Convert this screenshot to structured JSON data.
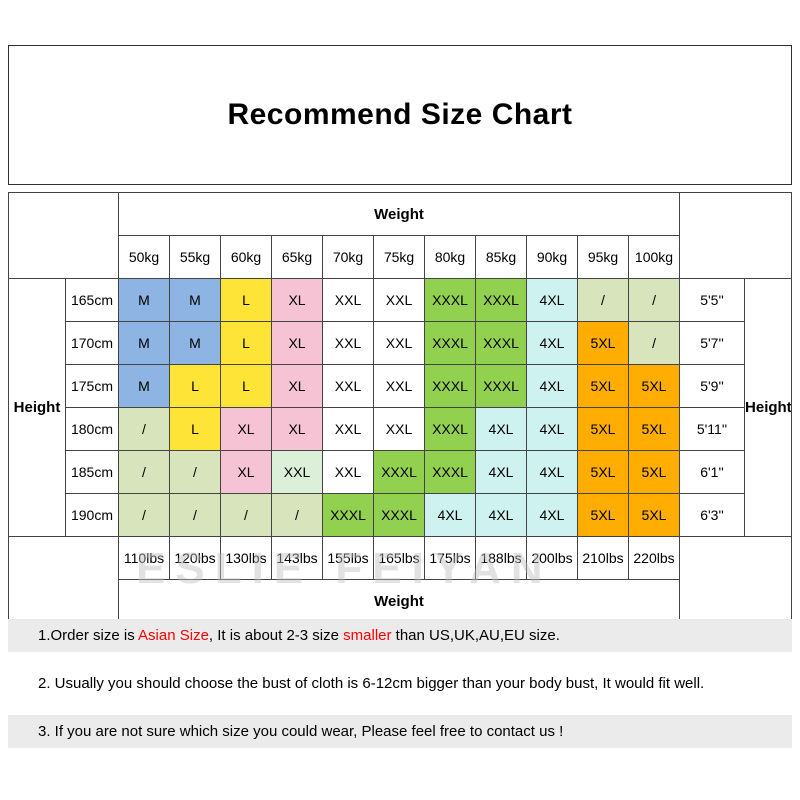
{
  "chart_data": {
    "type": "table",
    "title": "Recommend Size Chart",
    "weight_top": "Weight",
    "weight_bottom": "Weight",
    "height_left": "Height",
    "height_right": "Height",
    "kg": [
      "50kg",
      "55kg",
      "60kg",
      "65kg",
      "70kg",
      "75kg",
      "80kg",
      "85kg",
      "90kg",
      "95kg",
      "100kg"
    ],
    "lbs": [
      "110lbs",
      "120lbs",
      "130lbs",
      "143lbs",
      "155lbs",
      "165lbs",
      "175lbs",
      "188lbs",
      "200lbs",
      "210lbs",
      "220lbs"
    ],
    "rows": [
      {
        "cm": "165cm",
        "ft": "5'5''",
        "cells": [
          {
            "t": "M",
            "c": "blue"
          },
          {
            "t": "M",
            "c": "blue"
          },
          {
            "t": "L",
            "c": "yellow"
          },
          {
            "t": "XL",
            "c": "pink"
          },
          {
            "t": "XXL",
            "c": "white"
          },
          {
            "t": "XXL",
            "c": "white"
          },
          {
            "t": "XXXL",
            "c": "green"
          },
          {
            "t": "XXXL",
            "c": "green"
          },
          {
            "t": "4XL",
            "c": "cyan"
          },
          {
            "t": "/",
            "c": "pale"
          },
          {
            "t": "/",
            "c": "pale"
          }
        ]
      },
      {
        "cm": "170cm",
        "ft": "5'7''",
        "cells": [
          {
            "t": "M",
            "c": "blue"
          },
          {
            "t": "M",
            "c": "blue"
          },
          {
            "t": "L",
            "c": "yellow"
          },
          {
            "t": "XL",
            "c": "pink"
          },
          {
            "t": "XXL",
            "c": "white"
          },
          {
            "t": "XXL",
            "c": "white"
          },
          {
            "t": "XXXL",
            "c": "green"
          },
          {
            "t": "XXXL",
            "c": "green"
          },
          {
            "t": "4XL",
            "c": "cyan"
          },
          {
            "t": "5XL",
            "c": "orange"
          },
          {
            "t": "/",
            "c": "pale"
          }
        ]
      },
      {
        "cm": "175cm",
        "ft": "5'9''",
        "cells": [
          {
            "t": "M",
            "c": "blue"
          },
          {
            "t": "L",
            "c": "yellow"
          },
          {
            "t": "L",
            "c": "yellow"
          },
          {
            "t": "XL",
            "c": "pink"
          },
          {
            "t": "XXL",
            "c": "white"
          },
          {
            "t": "XXL",
            "c": "white"
          },
          {
            "t": "XXXL",
            "c": "green"
          },
          {
            "t": "XXXL",
            "c": "green"
          },
          {
            "t": "4XL",
            "c": "cyan"
          },
          {
            "t": "5XL",
            "c": "orange"
          },
          {
            "t": "5XL",
            "c": "orange"
          }
        ]
      },
      {
        "cm": "180cm",
        "ft": "5'11''",
        "cells": [
          {
            "t": "/",
            "c": "pale"
          },
          {
            "t": "L",
            "c": "yellow"
          },
          {
            "t": "XL",
            "c": "pink"
          },
          {
            "t": "XL",
            "c": "pink"
          },
          {
            "t": "XXL",
            "c": "white"
          },
          {
            "t": "XXL",
            "c": "white"
          },
          {
            "t": "XXXL",
            "c": "green"
          },
          {
            "t": "4XL",
            "c": "cyan"
          },
          {
            "t": "4XL",
            "c": "cyan"
          },
          {
            "t": "5XL",
            "c": "orange"
          },
          {
            "t": "5XL",
            "c": "orange"
          }
        ]
      },
      {
        "cm": "185cm",
        "ft": "6'1''",
        "cells": [
          {
            "t": "/",
            "c": "pale"
          },
          {
            "t": "/",
            "c": "pale"
          },
          {
            "t": "XL",
            "c": "pink"
          },
          {
            "t": "XXL",
            "c": "mint"
          },
          {
            "t": "XXL",
            "c": "white"
          },
          {
            "t": "XXXL",
            "c": "green"
          },
          {
            "t": "XXXL",
            "c": "green"
          },
          {
            "t": "4XL",
            "c": "cyan"
          },
          {
            "t": "4XL",
            "c": "cyan"
          },
          {
            "t": "5XL",
            "c": "orange"
          },
          {
            "t": "5XL",
            "c": "orange"
          }
        ]
      },
      {
        "cm": "190cm",
        "ft": "6'3''",
        "cells": [
          {
            "t": "/",
            "c": "pale"
          },
          {
            "t": "/",
            "c": "pale"
          },
          {
            "t": "/",
            "c": "pale"
          },
          {
            "t": "/",
            "c": "pale"
          },
          {
            "t": "XXXL",
            "c": "green"
          },
          {
            "t": "XXXL",
            "c": "green"
          },
          {
            "t": "4XL",
            "c": "cyan"
          },
          {
            "t": "4XL",
            "c": "cyan"
          },
          {
            "t": "4XL",
            "c": "cyan"
          },
          {
            "t": "5XL",
            "c": "orange"
          },
          {
            "t": "5XL",
            "c": "orange"
          }
        ]
      }
    ],
    "colors": {
      "blue": "#8DB4E2",
      "yellow": "#FFE438",
      "pink": "#F6C3D5",
      "white": "#FFFFFF",
      "green": "#92D050",
      "cyan": "#CDF2F0",
      "orange": "#FFAD00",
      "pale": "#D7E4BC",
      "mint": "#DCEFD8"
    }
  },
  "watermark": "ESLIE FEIYAN",
  "notes": {
    "n1": {
      "p1": "1.Order size is ",
      "red1": "Asian Size",
      "p2": ", It is about 2-3 size ",
      "red2": "smaller",
      "p3": " than US,UK,AU,EU size."
    },
    "n2": "2. Usually you should choose the bust of cloth is 6-12cm bigger than your body bust, It would fit well.",
    "n3": "3. If you are not sure which size you could wear, Please feel free to contact us !"
  }
}
